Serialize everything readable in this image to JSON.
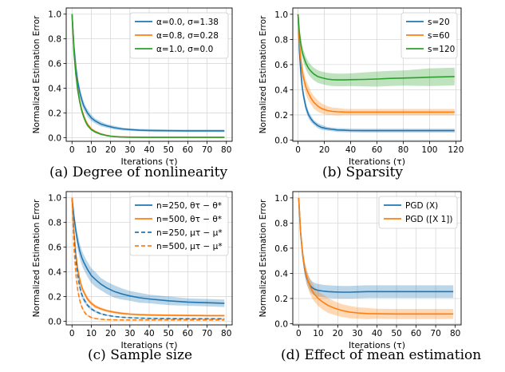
{
  "colors": {
    "blue": "#1f77b4",
    "orange": "#ff7f0e",
    "green": "#2ca02c",
    "grid": "#d9d9d9"
  },
  "chart_data": [
    {
      "id": "a",
      "type": "line",
      "caption": "(a) Degree of nonlinearity",
      "xlabel": "Iterations (τ)",
      "ylabel": "Normalized Estimation Error",
      "xlim": [
        -3,
        83
      ],
      "ylim": [
        -0.03,
        1.05
      ],
      "xticks": [
        0,
        10,
        20,
        30,
        40,
        50,
        60,
        70,
        80
      ],
      "xtick_labels": [
        "0",
        "10",
        "20",
        "30",
        "40",
        "50",
        "60",
        "70",
        "80"
      ],
      "yticks": [
        0,
        0.2,
        0.4,
        0.6,
        0.8,
        1.0
      ],
      "ytick_labels": [
        "0.0",
        "0.2",
        "0.4",
        "0.6",
        "0.8",
        "1.0"
      ],
      "grid": true,
      "legend": "top-right",
      "series": [
        {
          "name": "α=0.0,  σ=1.38",
          "color": "blue",
          "dash": false,
          "x": [
            0,
            1,
            2,
            3,
            4,
            5,
            6,
            7,
            8,
            10,
            12,
            15,
            18,
            22,
            26,
            30,
            35,
            40,
            50,
            60,
            70,
            79
          ],
          "y": [
            1.0,
            0.74,
            0.57,
            0.45,
            0.37,
            0.31,
            0.26,
            0.23,
            0.2,
            0.16,
            0.135,
            0.11,
            0.095,
            0.08,
            0.07,
            0.065,
            0.06,
            0.058,
            0.056,
            0.055,
            0.055,
            0.055
          ],
          "band": [
            0,
            0,
            0.03,
            0.04,
            0.04,
            0.04,
            0.035,
            0.03,
            0.03,
            0.025,
            0.02,
            0.02,
            0.015,
            0.015,
            0.012,
            0.01,
            0.01,
            0.01,
            0.01,
            0.01,
            0.01,
            0.01
          ]
        },
        {
          "name": "α=0.8,  σ=0.28",
          "color": "orange",
          "dash": false,
          "x": [
            0,
            1,
            2,
            3,
            4,
            5,
            6,
            7,
            8,
            10,
            12,
            15,
            18,
            20,
            22,
            25,
            30,
            40,
            50,
            60,
            70,
            79
          ],
          "y": [
            1.0,
            0.7,
            0.52,
            0.39,
            0.3,
            0.23,
            0.18,
            0.14,
            0.11,
            0.07,
            0.05,
            0.03,
            0.018,
            0.013,
            0.009,
            0.006,
            0.004,
            0.003,
            0.003,
            0.003,
            0.003,
            0.003
          ],
          "band": [
            0,
            0,
            0.02,
            0.02,
            0.02,
            0.02,
            0.015,
            0.015,
            0.012,
            0.01,
            0.008,
            0.006,
            0.005,
            0.004,
            0.003,
            0.003,
            0.002,
            0.002,
            0.002,
            0.002,
            0.002,
            0.002
          ]
        },
        {
          "name": "α=1.0,  σ=0.0",
          "color": "green",
          "dash": false,
          "x": [
            0,
            1,
            2,
            3,
            4,
            5,
            6,
            7,
            8,
            10,
            12,
            15,
            18,
            20,
            22,
            25,
            30,
            40,
            50,
            60,
            70,
            79
          ],
          "y": [
            1.0,
            0.69,
            0.51,
            0.38,
            0.29,
            0.22,
            0.17,
            0.13,
            0.1,
            0.065,
            0.045,
            0.027,
            0.016,
            0.011,
            0.008,
            0.005,
            0.003,
            0.002,
            0.002,
            0.002,
            0.002,
            0.002
          ],
          "band": [
            0,
            0,
            0.02,
            0.02,
            0.02,
            0.02,
            0.015,
            0.015,
            0.012,
            0.01,
            0.008,
            0.006,
            0.005,
            0.004,
            0.003,
            0.003,
            0.002,
            0.002,
            0.002,
            0.002,
            0.002,
            0.002
          ]
        }
      ]
    },
    {
      "id": "b",
      "type": "line",
      "caption": "(b) Sparsity",
      "xlabel": "Iterations (τ)",
      "ylabel": "Normalized Estimation Error",
      "xlim": [
        -4,
        124
      ],
      "ylim": [
        -0.01,
        1.05
      ],
      "xticks": [
        0,
        20,
        40,
        60,
        80,
        100,
        120
      ],
      "xtick_labels": [
        "0",
        "20",
        "40",
        "60",
        "80",
        "100",
        "120"
      ],
      "yticks": [
        0,
        0.2,
        0.4,
        0.6,
        0.8,
        1.0
      ],
      "ytick_labels": [
        "0.0",
        "0.2",
        "0.4",
        "0.6",
        "0.8",
        "1.0"
      ],
      "grid": true,
      "legend": "top-right",
      "series": [
        {
          "name": "s=20",
          "color": "blue",
          "dash": false,
          "x": [
            0,
            1,
            2,
            3,
            4,
            6,
            8,
            10,
            12,
            15,
            18,
            22,
            26,
            30,
            35,
            40,
            50,
            60,
            80,
            100,
            119
          ],
          "y": [
            1.0,
            0.72,
            0.55,
            0.44,
            0.36,
            0.26,
            0.2,
            0.165,
            0.14,
            0.115,
            0.1,
            0.09,
            0.085,
            0.08,
            0.078,
            0.076,
            0.075,
            0.075,
            0.075,
            0.075,
            0.075
          ],
          "band": [
            0,
            0.03,
            0.04,
            0.04,
            0.04,
            0.035,
            0.03,
            0.025,
            0.02,
            0.02,
            0.02,
            0.015,
            0.015,
            0.015,
            0.015,
            0.015,
            0.015,
            0.015,
            0.015,
            0.015,
            0.015
          ]
        },
        {
          "name": "s=60",
          "color": "orange",
          "dash": false,
          "x": [
            0,
            1,
            2,
            3,
            4,
            6,
            8,
            10,
            12,
            15,
            18,
            22,
            26,
            30,
            35,
            40,
            50,
            60,
            80,
            100,
            119
          ],
          "y": [
            1.0,
            0.78,
            0.65,
            0.56,
            0.5,
            0.42,
            0.37,
            0.33,
            0.3,
            0.27,
            0.25,
            0.235,
            0.228,
            0.225,
            0.223,
            0.222,
            0.222,
            0.222,
            0.222,
            0.222,
            0.222
          ],
          "band": [
            0,
            0.03,
            0.05,
            0.06,
            0.06,
            0.06,
            0.06,
            0.05,
            0.05,
            0.045,
            0.04,
            0.035,
            0.03,
            0.03,
            0.025,
            0.025,
            0.025,
            0.025,
            0.025,
            0.025,
            0.025
          ]
        },
        {
          "name": "s=120",
          "color": "green",
          "dash": false,
          "x": [
            0,
            1,
            2,
            3,
            4,
            6,
            8,
            10,
            12,
            15,
            18,
            22,
            26,
            30,
            35,
            40,
            50,
            60,
            70,
            80,
            90,
            100,
            110,
            119
          ],
          "y": [
            1.0,
            0.86,
            0.77,
            0.71,
            0.67,
            0.61,
            0.57,
            0.545,
            0.525,
            0.505,
            0.495,
            0.485,
            0.48,
            0.478,
            0.478,
            0.48,
            0.482,
            0.485,
            0.49,
            0.493,
            0.496,
            0.5,
            0.502,
            0.505
          ],
          "band": [
            0,
            0.03,
            0.05,
            0.05,
            0.05,
            0.05,
            0.05,
            0.05,
            0.05,
            0.05,
            0.05,
            0.05,
            0.05,
            0.05,
            0.05,
            0.05,
            0.055,
            0.06,
            0.06,
            0.06,
            0.065,
            0.07,
            0.07,
            0.07
          ]
        }
      ]
    },
    {
      "id": "c",
      "type": "line",
      "caption": "(c) Sample size",
      "xlabel": "Iterations (τ)",
      "ylabel": "Normalized Estimation Error",
      "xlim": [
        -3,
        83
      ],
      "ylim": [
        -0.03,
        1.05
      ],
      "xticks": [
        0,
        10,
        20,
        30,
        40,
        50,
        60,
        70,
        80
      ],
      "xtick_labels": [
        "0",
        "10",
        "20",
        "30",
        "40",
        "50",
        "60",
        "70",
        "80"
      ],
      "yticks": [
        0,
        0.2,
        0.4,
        0.6,
        0.8,
        1.0
      ],
      "ytick_labels": [
        "0.0",
        "0.2",
        "0.4",
        "0.6",
        "0.8",
        "1.0"
      ],
      "grid": true,
      "legend": "top-right",
      "series": [
        {
          "name": "n=250, θτ − θ*",
          "color": "blue",
          "dash": false,
          "x": [
            0,
            1,
            2,
            3,
            4,
            5,
            6,
            8,
            10,
            12,
            15,
            18,
            22,
            26,
            30,
            35,
            40,
            50,
            60,
            70,
            79
          ],
          "y": [
            1.0,
            0.85,
            0.73,
            0.64,
            0.57,
            0.52,
            0.48,
            0.42,
            0.37,
            0.34,
            0.3,
            0.27,
            0.24,
            0.22,
            0.205,
            0.19,
            0.18,
            0.165,
            0.155,
            0.15,
            0.145
          ],
          "band": [
            0,
            0.03,
            0.05,
            0.06,
            0.06,
            0.06,
            0.06,
            0.06,
            0.06,
            0.06,
            0.05,
            0.05,
            0.05,
            0.045,
            0.04,
            0.04,
            0.035,
            0.035,
            0.03,
            0.03,
            0.03
          ]
        },
        {
          "name": "n=500, θτ − θ*",
          "color": "orange",
          "dash": false,
          "x": [
            0,
            1,
            2,
            3,
            4,
            5,
            6,
            8,
            10,
            12,
            15,
            18,
            22,
            26,
            30,
            35,
            40,
            50,
            60,
            70,
            79
          ],
          "y": [
            1.0,
            0.72,
            0.54,
            0.42,
            0.34,
            0.28,
            0.24,
            0.18,
            0.145,
            0.12,
            0.1,
            0.085,
            0.072,
            0.063,
            0.057,
            0.053,
            0.05,
            0.048,
            0.046,
            0.045,
            0.045
          ],
          "band": [
            0,
            0.02,
            0.03,
            0.03,
            0.03,
            0.025,
            0.02,
            0.02,
            0.015,
            0.015,
            0.012,
            0.01,
            0.01,
            0.01,
            0.008,
            0.008,
            0.008,
            0.008,
            0.008,
            0.008,
            0.008
          ]
        },
        {
          "name": "n=250, μτ − μ*",
          "color": "blue",
          "dash": true,
          "x": [
            0,
            1,
            2,
            3,
            4,
            5,
            6,
            8,
            10,
            12,
            15,
            18,
            22,
            26,
            30,
            35,
            40,
            50,
            60,
            70,
            79
          ],
          "y": [
            1.0,
            0.7,
            0.5,
            0.37,
            0.28,
            0.22,
            0.18,
            0.13,
            0.1,
            0.08,
            0.06,
            0.048,
            0.038,
            0.032,
            0.028,
            0.025,
            0.023,
            0.021,
            0.02,
            0.02,
            0.02
          ],
          "band": [
            0,
            0.02,
            0.03,
            0.03,
            0.03,
            0.025,
            0.02,
            0.015,
            0.012,
            0.01,
            0.008,
            0.006,
            0.005,
            0.005,
            0.005,
            0.005,
            0.005,
            0.005,
            0.005,
            0.005,
            0.005
          ]
        },
        {
          "name": "n=500, μτ − μ*",
          "color": "orange",
          "dash": true,
          "x": [
            0,
            1,
            2,
            3,
            4,
            5,
            6,
            7,
            8,
            10,
            12,
            15,
            18,
            22,
            26,
            30,
            40,
            50,
            60,
            70,
            79
          ],
          "y": [
            1.0,
            0.6,
            0.38,
            0.25,
            0.17,
            0.12,
            0.085,
            0.062,
            0.047,
            0.03,
            0.022,
            0.016,
            0.013,
            0.011,
            0.01,
            0.01,
            0.01,
            0.01,
            0.01,
            0.01,
            0.01
          ],
          "band": [
            0,
            0.02,
            0.02,
            0.02,
            0.02,
            0.015,
            0.012,
            0.01,
            0.008,
            0.006,
            0.005,
            0.004,
            0.003,
            0.003,
            0.003,
            0.003,
            0.003,
            0.003,
            0.003,
            0.003,
            0.003
          ]
        }
      ]
    },
    {
      "id": "d",
      "type": "line",
      "caption": "(d) Effect of mean estimation",
      "xlabel": "Iterations (τ)",
      "ylabel": "Normalized Estimation Error",
      "xlim": [
        -3,
        83
      ],
      "ylim": [
        -0.01,
        1.05
      ],
      "xticks": [
        0,
        10,
        20,
        30,
        40,
        50,
        60,
        70,
        80
      ],
      "xtick_labels": [
        "0",
        "10",
        "20",
        "30",
        "40",
        "50",
        "60",
        "70",
        "80"
      ],
      "yticks": [
        0,
        0.2,
        0.4,
        0.6,
        0.8,
        1.0
      ],
      "ytick_labels": [
        "0.0",
        "0.2",
        "0.4",
        "0.6",
        "0.8",
        "1.0"
      ],
      "grid": true,
      "legend": "top-right",
      "series": [
        {
          "name": "PGD (X)",
          "color": "blue",
          "dash": false,
          "x": [
            0,
            1,
            2,
            3,
            4,
            5,
            6,
            7,
            8,
            10,
            12,
            15,
            18,
            22,
            26,
            30,
            35,
            40,
            50,
            60,
            70,
            79
          ],
          "y": [
            1.0,
            0.72,
            0.55,
            0.44,
            0.37,
            0.33,
            0.3,
            0.285,
            0.275,
            0.265,
            0.26,
            0.255,
            0.252,
            0.25,
            0.25,
            0.252,
            0.255,
            0.255,
            0.255,
            0.255,
            0.255,
            0.255
          ],
          "band": [
            0,
            0.03,
            0.04,
            0.05,
            0.05,
            0.05,
            0.05,
            0.05,
            0.05,
            0.05,
            0.05,
            0.05,
            0.05,
            0.05,
            0.05,
            0.05,
            0.05,
            0.05,
            0.05,
            0.05,
            0.05,
            0.05
          ]
        },
        {
          "name": "PGD ([X 1])",
          "color": "orange",
          "dash": false,
          "x": [
            0,
            1,
            2,
            3,
            4,
            5,
            6,
            7,
            8,
            10,
            12,
            15,
            18,
            22,
            26,
            30,
            35,
            40,
            50,
            60,
            70,
            79
          ],
          "y": [
            1.0,
            0.73,
            0.56,
            0.45,
            0.38,
            0.33,
            0.29,
            0.26,
            0.235,
            0.2,
            0.175,
            0.145,
            0.125,
            0.105,
            0.092,
            0.085,
            0.08,
            0.078,
            0.077,
            0.077,
            0.077,
            0.077
          ],
          "band": [
            0,
            0.03,
            0.04,
            0.05,
            0.06,
            0.06,
            0.06,
            0.06,
            0.06,
            0.06,
            0.06,
            0.06,
            0.055,
            0.05,
            0.05,
            0.045,
            0.045,
            0.04,
            0.04,
            0.04,
            0.04,
            0.04
          ]
        }
      ]
    }
  ]
}
